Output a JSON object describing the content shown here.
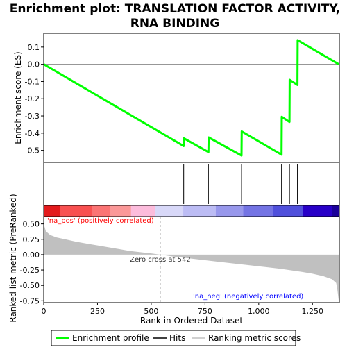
{
  "chart_data": [
    {
      "type": "line",
      "title_lines": [
        "Enrichment plot: TRANSLATION FACTOR ACTIVITY,",
        "RNA BINDING"
      ],
      "ylabel": "Enrichment score (ES)",
      "xlim": [
        0,
        1375
      ],
      "ylim": [
        -0.57,
        0.18
      ],
      "yticks": [
        0.1,
        0.0,
        -0.1,
        -0.2,
        -0.3,
        -0.4,
        -0.5
      ],
      "ytick_labels": [
        "0.1",
        "0.0",
        "-0.1",
        "-0.2",
        "-0.3",
        "-0.4",
        "-0.5"
      ],
      "series": [
        {
          "name": "Enrichment profile",
          "color": "#00ff00",
          "x": [
            0,
            651,
            652,
            766,
            767,
            920,
            921,
            1106,
            1107,
            1143,
            1144,
            1180,
            1181,
            1372
          ],
          "y": [
            0.0,
            -0.475,
            -0.43,
            -0.51,
            -0.425,
            -0.53,
            -0.39,
            -0.525,
            -0.305,
            -0.335,
            -0.09,
            -0.12,
            0.14,
            0.0
          ]
        }
      ],
      "hits": [
        651,
        766,
        920,
        1106,
        1143,
        1180
      ],
      "hits_color": "#000000"
    },
    {
      "type": "area",
      "ylabel": "Ranked list metric (PreRanked)",
      "xlabel": "Rank in Ordered Dataset",
      "xlim": [
        0,
        1375
      ],
      "ylim": [
        -0.78,
        0.62
      ],
      "xticks": [
        0,
        250,
        500,
        750,
        1000,
        1250
      ],
      "xtick_labels": [
        "0",
        "250",
        "500",
        "750",
        "1,000",
        "1,250"
      ],
      "yticks": [
        0.5,
        0.25,
        0.0,
        -0.25,
        -0.5,
        -0.75
      ],
      "ytick_labels": [
        "0.50",
        "0.25",
        "0.00",
        "-0.25",
        "-0.50",
        "-0.75"
      ],
      "series": [
        {
          "name": "Ranking metric scores",
          "color": "#c0c0c0",
          "x": [
            0,
            10,
            30,
            60,
            100,
            150,
            200,
            250,
            300,
            350,
            400,
            450,
            500,
            542,
            600,
            700,
            800,
            900,
            1000,
            1100,
            1200,
            1250,
            1300,
            1340,
            1360,
            1365,
            1372
          ],
          "y": [
            0.5,
            0.38,
            0.32,
            0.28,
            0.25,
            0.21,
            0.18,
            0.15,
            0.12,
            0.09,
            0.06,
            0.04,
            0.02,
            0.0,
            -0.03,
            -0.07,
            -0.11,
            -0.15,
            -0.19,
            -0.23,
            -0.28,
            -0.31,
            -0.35,
            -0.4,
            -0.46,
            -0.55,
            -0.75
          ]
        }
      ],
      "zero_cross_label": "Zero cross at 542",
      "zero_cross_x": 542,
      "pos_label": "'na_pos' (positively correlated)",
      "neg_label": "'na_neg' (negatively correlated)",
      "pos_color": "#ff0000",
      "neg_color": "#0000ff"
    }
  ],
  "heatmap_colors": [
    "#e31a1c",
    "#f85050",
    "#fb7474",
    "#fb9898",
    "#fcbcdc",
    "#d8d8f8",
    "#bcbcf4",
    "#9898ec",
    "#7474e4",
    "#5050dc",
    "#2800c8",
    "#1a0099"
  ],
  "legend": {
    "items": [
      {
        "label": "Enrichment profile",
        "color": "#00ff00"
      },
      {
        "label": "Hits",
        "color": "#000000"
      },
      {
        "label": "Ranking metric scores",
        "color": "#c0c0c0"
      }
    ]
  }
}
